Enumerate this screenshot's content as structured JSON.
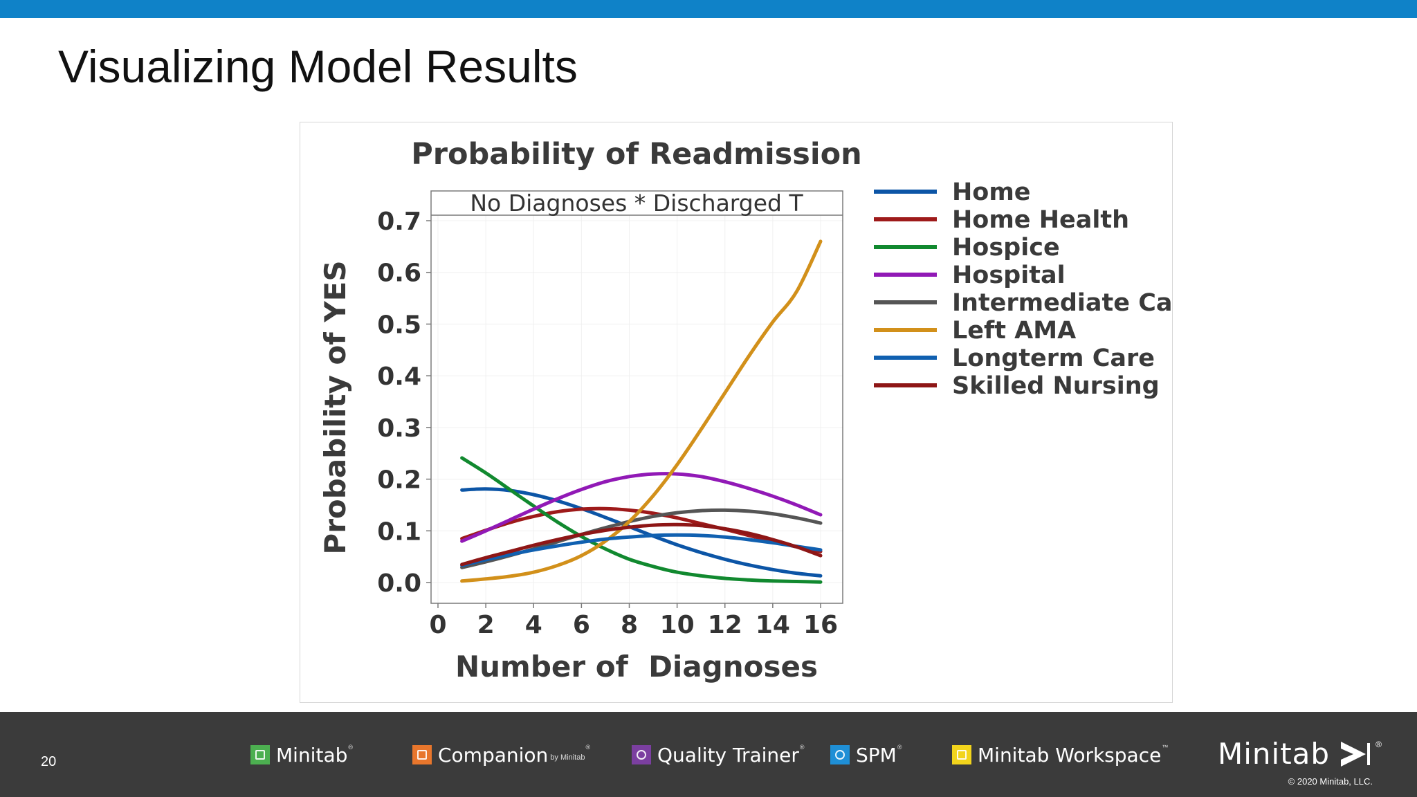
{
  "slide": {
    "title": "Visualizing Model Results",
    "page_number": "20",
    "accent_color": "#0f82c8",
    "footer_color": "#3b3b3b"
  },
  "chart_data": {
    "type": "line",
    "title": "Probability of Readmission",
    "panel_label": "No Diagnoses * Discharged T",
    "xlabel": "Number of  Diagnoses",
    "ylabel": "Probability of YES",
    "xlim": [
      0,
      16
    ],
    "ylim": [
      0,
      0.7
    ],
    "x_ticks": [
      "0",
      "2",
      "4",
      "6",
      "8",
      "10",
      "12",
      "14",
      "16"
    ],
    "y_ticks": [
      "0.0",
      "0.1",
      "0.2",
      "0.3",
      "0.4",
      "0.5",
      "0.6",
      "0.7"
    ],
    "grid": true,
    "legend_position": "right",
    "x": [
      1,
      2,
      3,
      4,
      5,
      6,
      7,
      8,
      9,
      10,
      11,
      12,
      13,
      14,
      15,
      16
    ],
    "series": [
      {
        "name": "Home",
        "color": "#0c55a6",
        "values": [
          0.179,
          0.181,
          0.178,
          0.17,
          0.158,
          0.143,
          0.126,
          0.108,
          0.09,
          0.073,
          0.058,
          0.045,
          0.034,
          0.025,
          0.018,
          0.013
        ]
      },
      {
        "name": "Home Health",
        "color": "#9e1a1a",
        "values": [
          0.085,
          0.101,
          0.116,
          0.128,
          0.137,
          0.142,
          0.143,
          0.14,
          0.134,
          0.125,
          0.114,
          0.103,
          0.091,
          0.08,
          0.069,
          0.06
        ]
      },
      {
        "name": "Hospice",
        "color": "#11892f",
        "values": [
          0.241,
          0.212,
          0.18,
          0.148,
          0.117,
          0.089,
          0.065,
          0.045,
          0.031,
          0.02,
          0.013,
          0.008,
          0.005,
          0.003,
          0.002,
          0.001
        ]
      },
      {
        "name": "Hospital",
        "color": "#9119b6",
        "values": [
          0.08,
          0.1,
          0.121,
          0.142,
          0.162,
          0.18,
          0.195,
          0.205,
          0.21,
          0.21,
          0.205,
          0.195,
          0.182,
          0.167,
          0.15,
          0.131
        ]
      },
      {
        "name": "Intermediate Care",
        "color": "#555555",
        "values": [
          0.029,
          0.04,
          0.052,
          0.065,
          0.079,
          0.093,
          0.106,
          0.118,
          0.128,
          0.135,
          0.139,
          0.14,
          0.138,
          0.133,
          0.125,
          0.115
        ]
      },
      {
        "name": "Left AMA",
        "color": "#d2901a",
        "values": [
          0.003,
          0.007,
          0.012,
          0.02,
          0.033,
          0.052,
          0.08,
          0.118,
          0.168,
          0.228,
          0.296,
          0.367,
          0.438,
          0.504,
          0.563,
          0.66
        ]
      },
      {
        "name": "Longterm Care",
        "color": "#1060b0",
        "values": [
          0.033,
          0.044,
          0.054,
          0.063,
          0.071,
          0.078,
          0.084,
          0.088,
          0.091,
          0.092,
          0.091,
          0.088,
          0.083,
          0.077,
          0.07,
          0.063
        ]
      },
      {
        "name": "Skilled Nursing",
        "color": "#8e1616",
        "values": [
          0.035,
          0.048,
          0.06,
          0.072,
          0.083,
          0.093,
          0.101,
          0.107,
          0.111,
          0.112,
          0.11,
          0.104,
          0.095,
          0.083,
          0.069,
          0.052
        ]
      }
    ]
  },
  "footer": {
    "products": [
      {
        "name": "Minitab",
        "sub": "",
        "reg": "®",
        "icon": "minitab-bar-chart-icon",
        "color": "#4caf50"
      },
      {
        "name": "Companion",
        "sub": "by Minitab",
        "reg": "®",
        "icon": "companion-roadmap-icon",
        "color": "#e8762c"
      },
      {
        "name": "Quality Trainer",
        "sub": "",
        "reg": "®",
        "icon": "quality-trainer-play-icon",
        "color": "#7b3fa0"
      },
      {
        "name": "SPM",
        "sub": "",
        "reg": "®",
        "icon": "spm-target-icon",
        "color": "#1f8fd6"
      },
      {
        "name": "Minitab Workspace",
        "sub": "",
        "reg": "™",
        "icon": "workspace-bulb-icon",
        "color": "#f2d41c"
      }
    ],
    "brand": "Minitab",
    "brand_reg": "®",
    "copyright": "© 2020 Minitab, LLC."
  }
}
